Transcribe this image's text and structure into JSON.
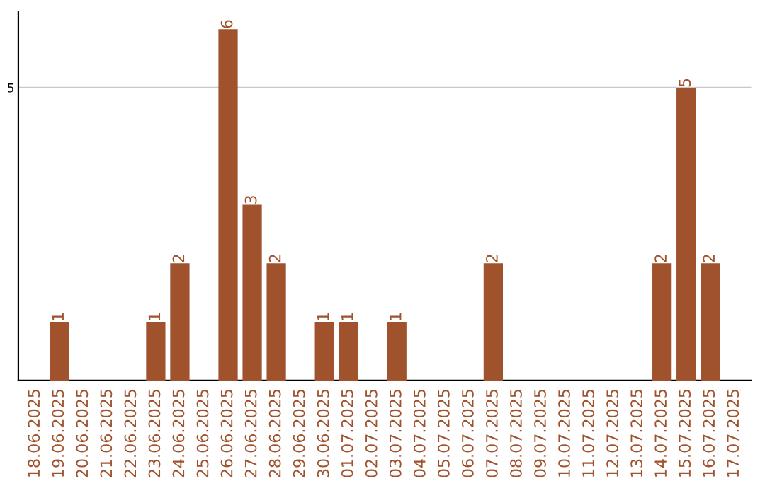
{
  "chart_data": {
    "type": "bar",
    "categories": [
      "18.06.2025",
      "19.06.2025",
      "20.06.2025",
      "21.06.2025",
      "22.06.2025",
      "23.06.2025",
      "24.06.2025",
      "25.06.2025",
      "26.06.2025",
      "27.06.2025",
      "28.06.2025",
      "29.06.2025",
      "30.06.2025",
      "01.07.2025",
      "02.07.2025",
      "03.07.2025",
      "04.07.2025",
      "05.07.2025",
      "06.07.2025",
      "07.07.2025",
      "08.07.2025",
      "09.07.2025",
      "10.07.2025",
      "11.07.2025",
      "12.07.2025",
      "13.07.2025",
      "14.07.2025",
      "15.07.2025",
      "16.07.2025",
      "17.07.2025"
    ],
    "values": [
      0,
      1,
      0,
      0,
      0,
      1,
      2,
      0,
      6,
      3,
      2,
      0,
      1,
      1,
      0,
      1,
      0,
      0,
      0,
      2,
      0,
      0,
      0,
      0,
      0,
      0,
      2,
      5,
      2,
      0
    ],
    "value_labels": [
      null,
      "1",
      null,
      null,
      null,
      "1",
      "2",
      null,
      "6",
      "3",
      "2",
      null,
      "1",
      "1",
      null,
      "1",
      null,
      null,
      null,
      "2",
      null,
      null,
      null,
      null,
      null,
      null,
      "2",
      "5",
      "2",
      null
    ],
    "color": "#a0522d",
    "ylim": [
      0,
      6.3
    ],
    "yticks": [
      5
    ],
    "grid": "y"
  }
}
